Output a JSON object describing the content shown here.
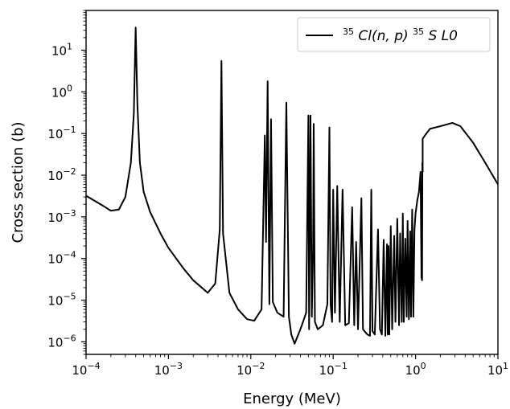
{
  "chart_data": {
    "type": "line",
    "xlabel": "Energy (MeV)",
    "ylabel": "Cross section (b)",
    "xscale": "log",
    "yscale": "log",
    "xlim": [
      0.0001,
      10
    ],
    "ylim": [
      5e-07,
      90
    ],
    "grid": false,
    "legend_position": "top-right",
    "x_ticks": [
      {
        "base": "10",
        "exp": "−4"
      },
      {
        "base": "10",
        "exp": "−3"
      },
      {
        "base": "10",
        "exp": "−2"
      },
      {
        "base": "10",
        "exp": "−1"
      },
      {
        "base": "10",
        "exp": "0"
      },
      {
        "base": "10",
        "exp": "1"
      }
    ],
    "y_ticks": [
      {
        "base": "10",
        "exp": "−6"
      },
      {
        "base": "10",
        "exp": "−5"
      },
      {
        "base": "10",
        "exp": "−4"
      },
      {
        "base": "10",
        "exp": "−3"
      },
      {
        "base": "10",
        "exp": "−2"
      },
      {
        "base": "10",
        "exp": "−1"
      },
      {
        "base": "10",
        "exp": "0"
      },
      {
        "base": "10",
        "exp": "1"
      }
    ],
    "legend": {
      "pre_sup": "35",
      "reaction": "Cl(n, p)",
      "post_sup": "35",
      "tail": "S L0"
    },
    "series": [
      {
        "name": "35Cl(n,p)35S L0",
        "color": "#000000",
        "x": [
          0.0001,
          0.00015,
          0.0002,
          0.00025,
          0.0003,
          0.00035,
          0.00038,
          0.0004,
          0.00042,
          0.00045,
          0.0005,
          0.0006,
          0.0008,
          0.001,
          0.0015,
          0.002,
          0.003,
          0.0037,
          0.0042,
          0.0044,
          0.0046,
          0.0055,
          0.007,
          0.009,
          0.011,
          0.0135,
          0.0148,
          0.0153,
          0.016,
          0.0168,
          0.0176,
          0.0185,
          0.021,
          0.025,
          0.027,
          0.029,
          0.031,
          0.034,
          0.04,
          0.047,
          0.05,
          0.051,
          0.053,
          0.055,
          0.057,
          0.058,
          0.06,
          0.065,
          0.075,
          0.085,
          0.09,
          0.093,
          0.097,
          0.1,
          0.105,
          0.112,
          0.12,
          0.13,
          0.14,
          0.155,
          0.17,
          0.18,
          0.19,
          0.2,
          0.22,
          0.23,
          0.24,
          0.26,
          0.28,
          0.29,
          0.3,
          0.32,
          0.35,
          0.37,
          0.39,
          0.41,
          0.43,
          0.45,
          0.46,
          0.47,
          0.48,
          0.5,
          0.52,
          0.55,
          0.57,
          0.6,
          0.63,
          0.65,
          0.68,
          0.7,
          0.72,
          0.75,
          0.78,
          0.8,
          0.83,
          0.86,
          0.88,
          0.91,
          0.94,
          0.97,
          1.0,
          1.05,
          1.1,
          1.15,
          1.18,
          1.2,
          1.21,
          1.22,
          1.22,
          1.3,
          1.5,
          2.0,
          2.8,
          3.5,
          5.0,
          7.0,
          10.0
        ],
        "y": [
          0.0032,
          0.002,
          0.0014,
          0.0015,
          0.003,
          0.02,
          0.3,
          35,
          0.5,
          0.02,
          0.004,
          0.0013,
          0.0004,
          0.00018,
          6e-05,
          3e-05,
          1.5e-05,
          2.5e-05,
          0.0005,
          5.5,
          0.0004,
          1.5e-05,
          6e-06,
          3.5e-06,
          3.2e-06,
          6e-06,
          0.09,
          0.00025,
          1.8,
          8e-06,
          0.22,
          9e-06,
          5e-06,
          4e-06,
          0.55,
          4e-06,
          1.5e-06,
          9e-07,
          2e-06,
          5e-06,
          0.27,
          2e-06,
          0.27,
          4e-06,
          0.00015,
          0.17,
          3e-06,
          2e-06,
          2.5e-06,
          8e-06,
          0.14,
          8e-06,
          3e-06,
          0.0045,
          5e-06,
          0.0055,
          3e-06,
          0.0045,
          2.5e-06,
          2.8e-06,
          0.0017,
          2.5e-06,
          0.00025,
          2e-06,
          0.0028,
          2e-06,
          1.8e-06,
          1.5e-06,
          1.4e-06,
          0.0045,
          1.8e-06,
          1.5e-06,
          0.0005,
          2e-06,
          1.5e-06,
          0.00028,
          1.4e-06,
          0.00022,
          1.5e-06,
          0.0002,
          1.5e-06,
          0.0006,
          2e-06,
          0.00035,
          3e-06,
          0.0009,
          2.5e-06,
          0.0004,
          3e-06,
          0.0012,
          3e-06,
          0.0003,
          4e-06,
          0.0008,
          3.5e-06,
          0.00045,
          4e-06,
          0.0015,
          4e-06,
          0.0005,
          0.0012,
          0.0025,
          0.004,
          0.012,
          3.5e-05,
          3e-05,
          0.02,
          0.012,
          0.075,
          0.09,
          0.13,
          0.15,
          0.18,
          0.15,
          0.06,
          0.02,
          0.006
        ]
      }
    ]
  }
}
